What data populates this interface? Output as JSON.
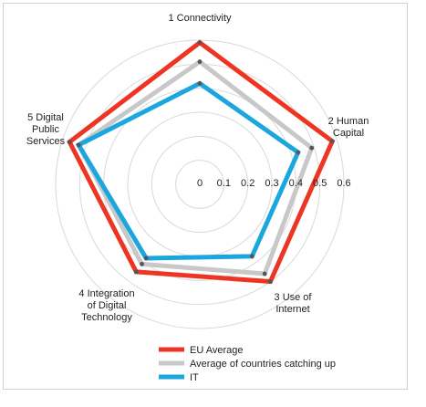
{
  "chart_data": {
    "type": "radar",
    "axes": [
      [
        "1 Connectivity"
      ],
      [
        "2 Human",
        "Capital"
      ],
      [
        "3 Use of",
        "Internet"
      ],
      [
        "4 Integration",
        "of Digital",
        "Technology"
      ],
      [
        "5 Digital",
        "Public",
        "Services"
      ]
    ],
    "range": [
      0,
      0.6
    ],
    "ticks": [
      "0",
      "0.1",
      "0.2",
      "0.3",
      "0.4",
      "0.5",
      "0.6"
    ],
    "grid": true,
    "legend_position": "bottom",
    "series": [
      {
        "name": "EU Average",
        "color": "#ee3524",
        "values": [
          0.59,
          0.58,
          0.5,
          0.45,
          0.57
        ]
      },
      {
        "name": "Average of countries catching up",
        "color": "#c8c8c8",
        "values": [
          0.51,
          0.49,
          0.46,
          0.41,
          0.53
        ]
      },
      {
        "name": "IT",
        "color": "#1ba6dd",
        "values": [
          0.42,
          0.43,
          0.37,
          0.38,
          0.53
        ]
      }
    ]
  }
}
